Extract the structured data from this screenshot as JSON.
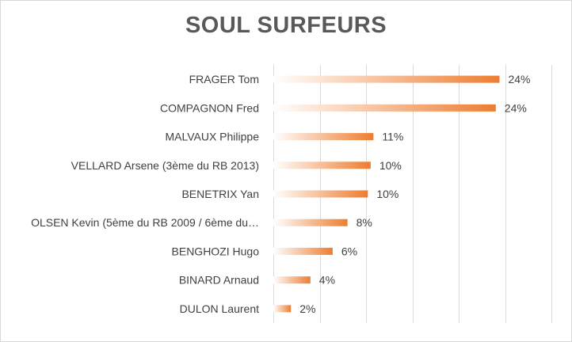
{
  "chart_data": {
    "type": "bar",
    "orientation": "horizontal",
    "title": "SOUL SURFEURS",
    "categories": [
      "FRAGER Tom",
      "COMPAGNON Fred",
      "MALVAUX Philippe",
      "VELLARD Arsene (3ème du RB 2013)",
      "BENETRIX Yan",
      "OLSEN Kevin (5ème du RB 2009 / 6ème du…",
      "BENGHOZI Hugo",
      "BINARD Arnaud",
      "DULON Laurent"
    ],
    "values": [
      24.4,
      24.0,
      10.8,
      10.5,
      10.2,
      8.0,
      6.4,
      4.0,
      1.9
    ],
    "value_labels": [
      "24%",
      "24%",
      "11%",
      "10%",
      "10%",
      "8%",
      "6%",
      "4%",
      "2%"
    ],
    "xlim": [
      0,
      30
    ],
    "grid": true,
    "legend": "none",
    "bar_color": "#ed7d31",
    "bar_gradient_start": "#ffffff"
  }
}
